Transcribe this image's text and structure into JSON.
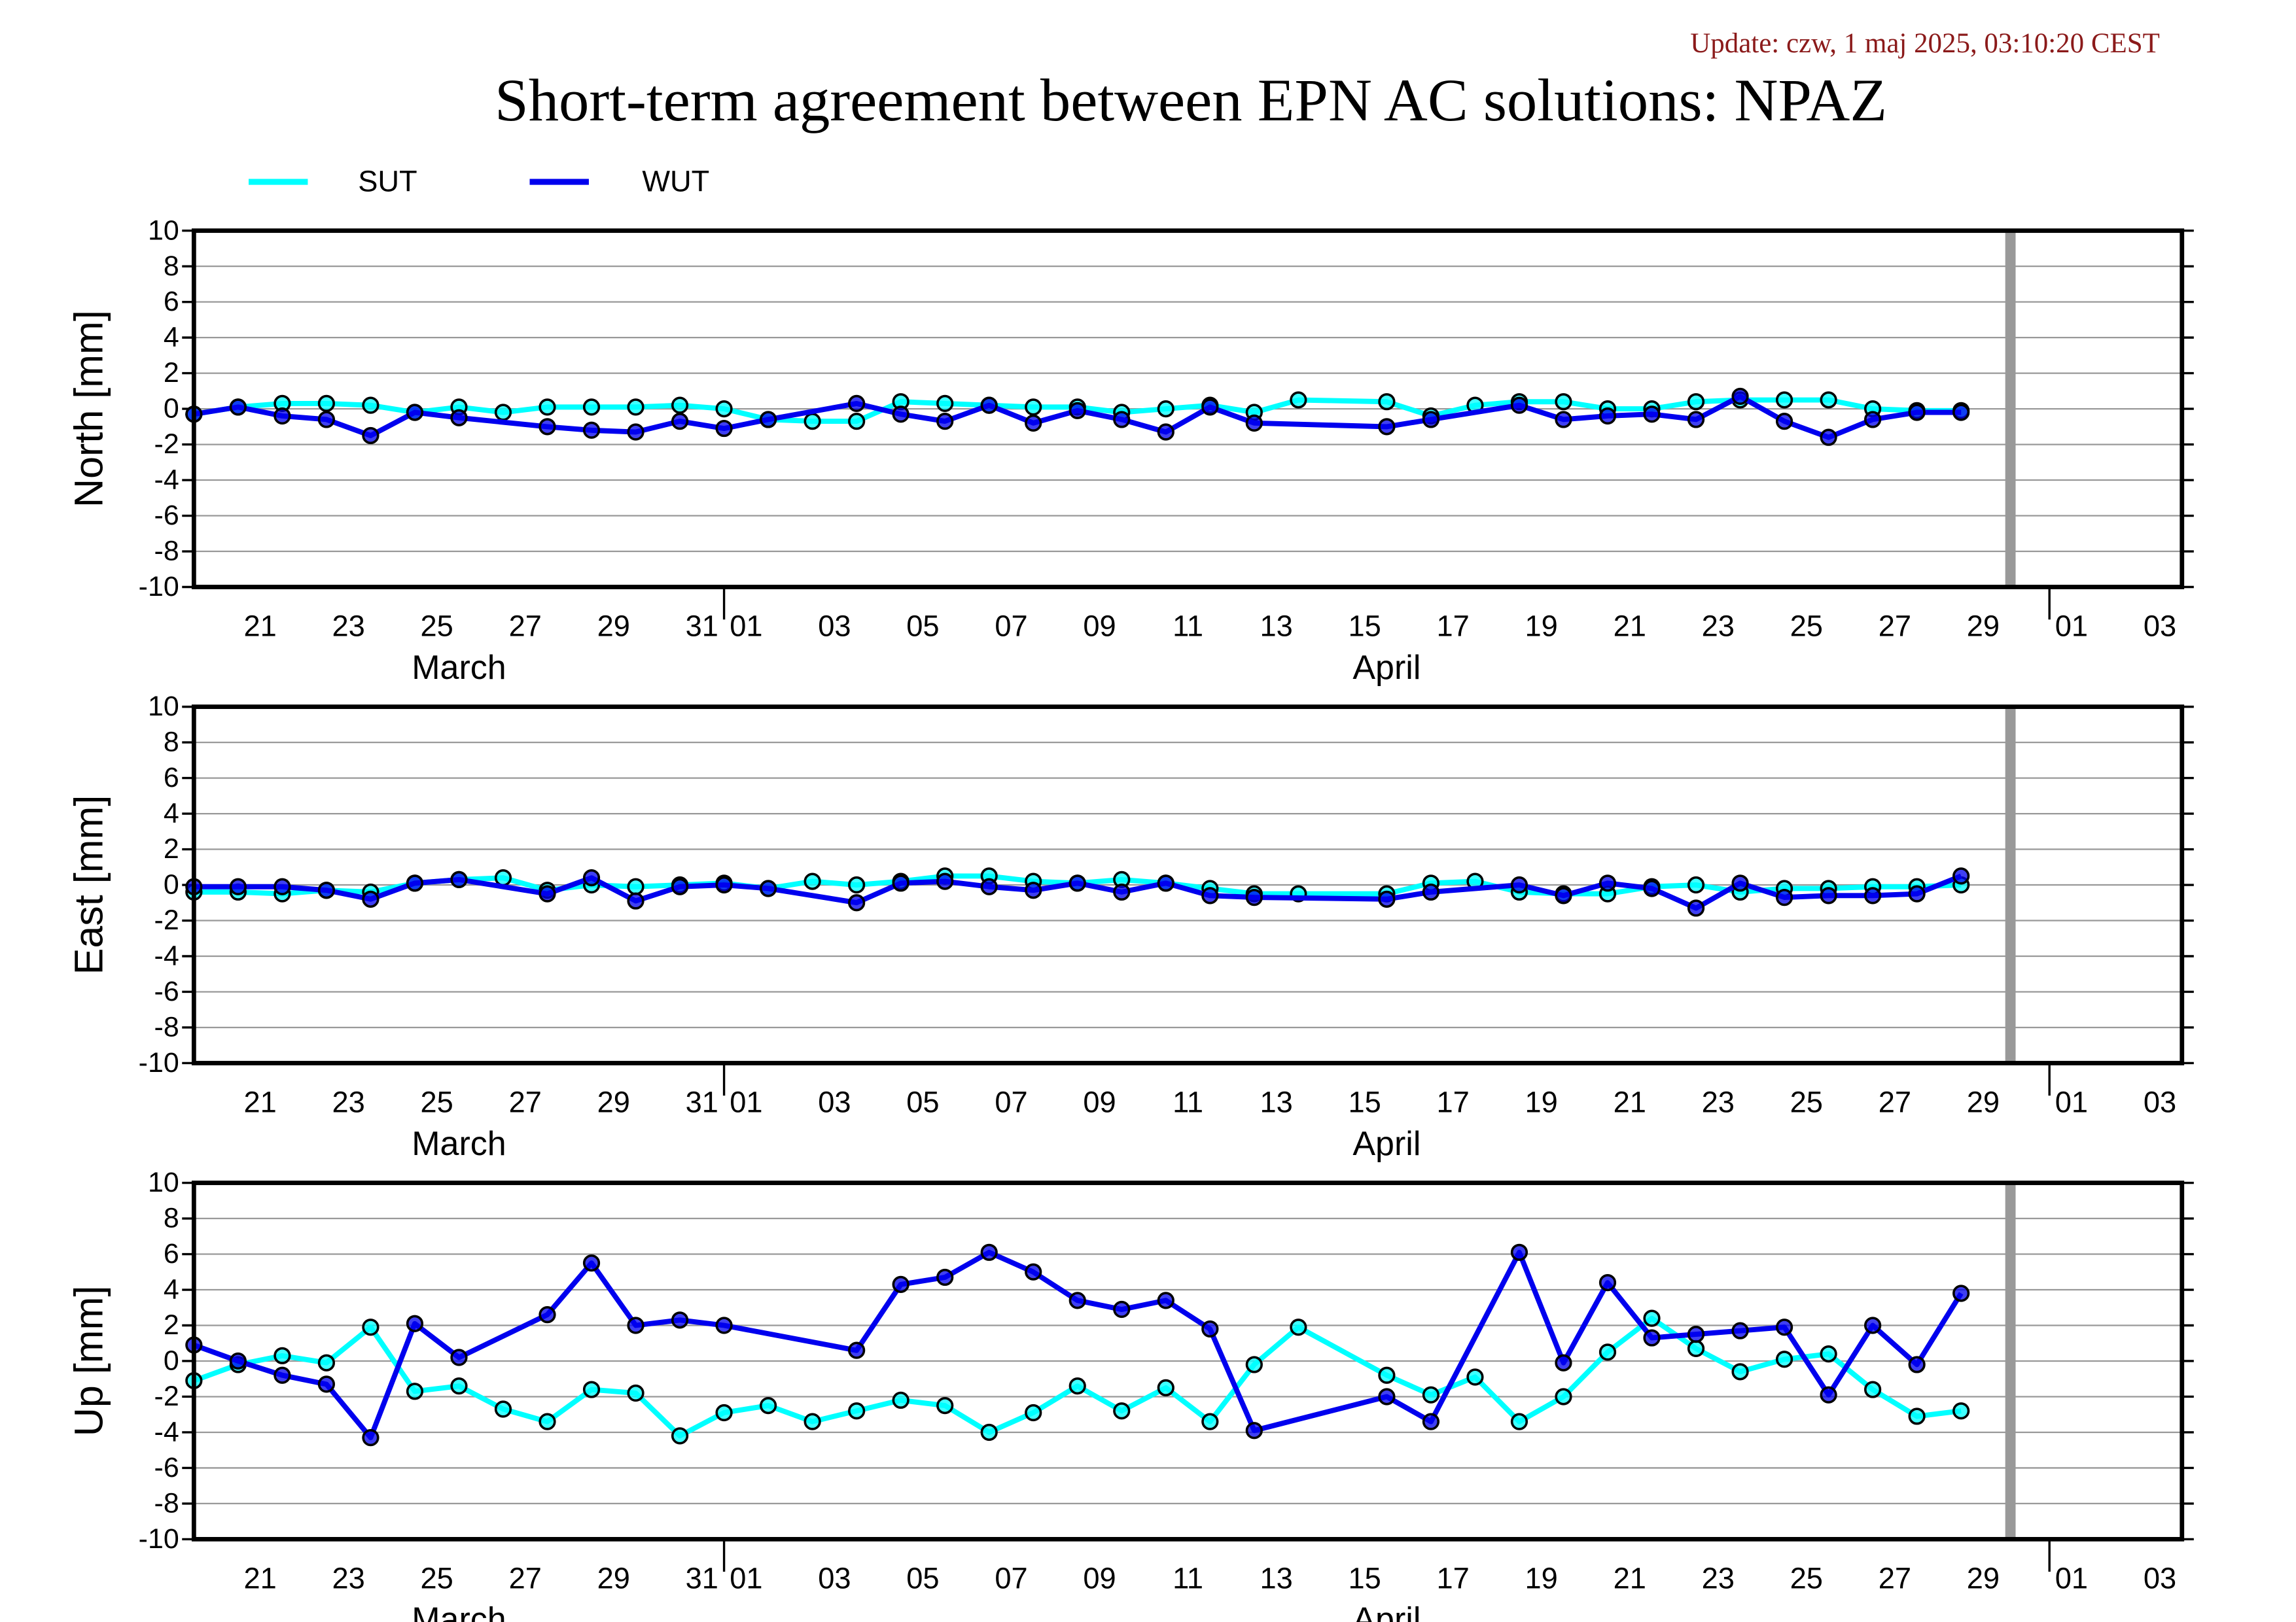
{
  "title": "Short-term agreement between EPN AC solutions: NPAZ",
  "update": "Update: czw, 1 maj 2025, 03:10:20 CEST",
  "chart_data": [
    {
      "type": "line",
      "ylabel": "North [mm]",
      "xlim": [
        "03-20",
        "05-04"
      ],
      "ylim": [
        -10,
        10
      ],
      "yticks": [
        -10,
        -8,
        -6,
        -4,
        -2,
        0,
        2,
        4,
        6,
        8,
        10
      ],
      "grid": true,
      "marker_x": "04-30",
      "xticks": [
        {
          "value": "03-21",
          "label": "21"
        },
        {
          "value": "03-23",
          "label": "23"
        },
        {
          "value": "03-25",
          "label": "25"
        },
        {
          "value": "03-27",
          "label": "27"
        },
        {
          "value": "03-29",
          "label": "29"
        },
        {
          "value": "03-31",
          "label": "31"
        },
        {
          "value": "04-01",
          "label": "01"
        },
        {
          "value": "04-03",
          "label": "03"
        },
        {
          "value": "04-05",
          "label": "05"
        },
        {
          "value": "04-07",
          "label": "07"
        },
        {
          "value": "04-09",
          "label": "09"
        },
        {
          "value": "04-11",
          "label": "11"
        },
        {
          "value": "04-13",
          "label": "13"
        },
        {
          "value": "04-15",
          "label": "15"
        },
        {
          "value": "04-17",
          "label": "17"
        },
        {
          "value": "04-19",
          "label": "19"
        },
        {
          "value": "04-21",
          "label": "21"
        },
        {
          "value": "04-23",
          "label": "23"
        },
        {
          "value": "04-25",
          "label": "25"
        },
        {
          "value": "04-27",
          "label": "27"
        },
        {
          "value": "04-29",
          "label": "29"
        },
        {
          "value": "05-01",
          "label": "01"
        },
        {
          "value": "05-03",
          "label": "03"
        }
      ],
      "months": [
        {
          "value": "03",
          "label": "March"
        },
        {
          "value": "04",
          "label": "April"
        }
      ],
      "series": [
        {
          "name": "SUT",
          "color": "#00ffff",
          "x": [
            "03-20",
            "03-21",
            "03-22",
            "03-23",
            "03-24",
            "03-25",
            "03-26",
            "03-27",
            "03-28",
            "03-29",
            "03-30",
            "03-31",
            "04-01",
            "04-02",
            "04-03",
            "04-04",
            "04-05",
            "04-06",
            "04-07",
            "04-08",
            "04-09",
            "04-10",
            "04-11",
            "04-12",
            "04-13",
            "04-14",
            "04-16",
            "04-17",
            "04-18",
            "04-19",
            "04-20",
            "04-21",
            "04-22",
            "04-23",
            "04-24",
            "04-25",
            "04-26",
            "04-27",
            "04-28",
            "04-29"
          ],
          "values": [
            -0.3,
            0.1,
            0.3,
            0.3,
            0.2,
            -0.2,
            0.1,
            -0.2,
            0.1,
            0.1,
            0.1,
            0.2,
            0.0,
            -0.6,
            -0.7,
            -0.7,
            0.4,
            0.3,
            0.2,
            0.1,
            0.1,
            -0.2,
            0.0,
            0.2,
            -0.2,
            0.5,
            0.4,
            -0.4,
            0.2,
            0.4,
            0.4,
            0.0,
            0.0,
            0.4,
            0.5,
            0.5,
            0.5,
            0.0,
            -0.1,
            -0.1
          ]
        },
        {
          "name": "WUT",
          "color": "#0000ee",
          "x": [
            "03-20",
            "03-21",
            "03-22",
            "03-23",
            "03-24",
            "03-25",
            "03-26",
            "03-28",
            "03-29",
            "03-30",
            "03-31",
            "04-01",
            "04-02",
            "04-04",
            "04-05",
            "04-06",
            "04-07",
            "04-08",
            "04-09",
            "04-10",
            "04-11",
            "04-12",
            "04-13",
            "04-16",
            "04-17",
            "04-19",
            "04-20",
            "04-21",
            "04-22",
            "04-23",
            "04-24",
            "04-25",
            "04-26",
            "04-27",
            "04-28",
            "04-29"
          ],
          "values": [
            -0.3,
            0.1,
            -0.4,
            -0.6,
            -1.5,
            -0.2,
            -0.5,
            -1.0,
            -1.2,
            -1.3,
            -0.7,
            -1.1,
            -0.6,
            0.3,
            -0.3,
            -0.7,
            0.2,
            -0.8,
            -0.1,
            -0.6,
            -1.3,
            0.1,
            -0.8,
            -1.0,
            -0.6,
            0.2,
            -0.6,
            -0.4,
            -0.3,
            -0.6,
            0.7,
            -0.7,
            -1.6,
            -0.6,
            -0.2,
            -0.2
          ]
        }
      ]
    },
    {
      "type": "line",
      "ylabel": "East [mm]",
      "xlim": [
        "03-20",
        "05-04"
      ],
      "ylim": [
        -10,
        10
      ],
      "yticks": [
        -10,
        -8,
        -6,
        -4,
        -2,
        0,
        2,
        4,
        6,
        8,
        10
      ],
      "grid": true,
      "marker_x": "04-30",
      "xticks": [
        {
          "value": "03-21",
          "label": "21"
        },
        {
          "value": "03-23",
          "label": "23"
        },
        {
          "value": "03-25",
          "label": "25"
        },
        {
          "value": "03-27",
          "label": "27"
        },
        {
          "value": "03-29",
          "label": "29"
        },
        {
          "value": "03-31",
          "label": "31"
        },
        {
          "value": "04-01",
          "label": "01"
        },
        {
          "value": "04-03",
          "label": "03"
        },
        {
          "value": "04-05",
          "label": "05"
        },
        {
          "value": "04-07",
          "label": "07"
        },
        {
          "value": "04-09",
          "label": "09"
        },
        {
          "value": "04-11",
          "label": "11"
        },
        {
          "value": "04-13",
          "label": "13"
        },
        {
          "value": "04-15",
          "label": "15"
        },
        {
          "value": "04-17",
          "label": "17"
        },
        {
          "value": "04-19",
          "label": "19"
        },
        {
          "value": "04-21",
          "label": "21"
        },
        {
          "value": "04-23",
          "label": "23"
        },
        {
          "value": "04-25",
          "label": "25"
        },
        {
          "value": "04-27",
          "label": "27"
        },
        {
          "value": "04-29",
          "label": "29"
        },
        {
          "value": "05-01",
          "label": "01"
        },
        {
          "value": "05-03",
          "label": "03"
        }
      ],
      "months": [
        {
          "value": "03",
          "label": "March"
        },
        {
          "value": "04",
          "label": "April"
        }
      ],
      "series": [
        {
          "color": "#00ffff",
          "x": [
            "03-20",
            "03-21",
            "03-22",
            "03-23",
            "03-24",
            "03-25",
            "03-26",
            "03-27",
            "03-28",
            "03-29",
            "03-30",
            "03-31",
            "04-01",
            "04-02",
            "04-03",
            "04-04",
            "04-05",
            "04-06",
            "04-07",
            "04-08",
            "04-09",
            "04-10",
            "04-11",
            "04-12",
            "04-13",
            "04-14",
            "04-16",
            "04-17",
            "04-18",
            "04-19",
            "04-20",
            "04-21",
            "04-22",
            "04-23",
            "04-24",
            "04-25",
            "04-26",
            "04-27",
            "04-28",
            "04-29"
          ],
          "values": [
            -0.4,
            -0.4,
            -0.5,
            -0.3,
            -0.4,
            0.1,
            0.3,
            0.4,
            -0.3,
            0.0,
            -0.1,
            0.0,
            0.1,
            -0.2,
            0.2,
            0.0,
            0.2,
            0.5,
            0.5,
            0.2,
            0.1,
            0.3,
            0.1,
            -0.2,
            -0.5,
            -0.5,
            -0.5,
            0.1,
            0.2,
            -0.4,
            -0.5,
            -0.5,
            -0.1,
            0.0,
            -0.4,
            -0.2,
            -0.2,
            -0.1,
            -0.1,
            0.0
          ]
        },
        {
          "color": "#0000ee",
          "x": [
            "03-20",
            "03-21",
            "03-22",
            "03-23",
            "03-24",
            "03-25",
            "03-26",
            "03-28",
            "03-29",
            "03-30",
            "03-31",
            "04-01",
            "04-02",
            "04-04",
            "04-05",
            "04-06",
            "04-07",
            "04-08",
            "04-09",
            "04-10",
            "04-11",
            "04-12",
            "04-13",
            "04-16",
            "04-17",
            "04-19",
            "04-20",
            "04-21",
            "04-22",
            "04-23",
            "04-24",
            "04-25",
            "04-26",
            "04-27",
            "04-28",
            "04-29"
          ],
          "values": [
            -0.1,
            -0.1,
            -0.1,
            -0.3,
            -0.8,
            0.1,
            0.3,
            -0.5,
            0.4,
            -0.9,
            -0.1,
            0.0,
            -0.2,
            -1.0,
            0.1,
            0.2,
            -0.1,
            -0.3,
            0.1,
            -0.4,
            0.1,
            -0.6,
            -0.7,
            -0.8,
            -0.4,
            0.0,
            -0.6,
            0.1,
            -0.2,
            -1.3,
            0.1,
            -0.7,
            -0.6,
            -0.6,
            -0.5,
            0.5
          ]
        }
      ]
    },
    {
      "type": "line",
      "ylabel": "Up [mm]",
      "xlim": [
        "03-20",
        "05-04"
      ],
      "ylim": [
        -10,
        10
      ],
      "yticks": [
        -10,
        -8,
        -6,
        -4,
        -2,
        0,
        2,
        4,
        6,
        8,
        10
      ],
      "grid": true,
      "marker_x": "04-30",
      "xticks": [
        {
          "value": "03-21",
          "label": "21"
        },
        {
          "value": "03-23",
          "label": "23"
        },
        {
          "value": "03-25",
          "label": "25"
        },
        {
          "value": "03-27",
          "label": "27"
        },
        {
          "value": "03-29",
          "label": "29"
        },
        {
          "value": "03-31",
          "label": "31"
        },
        {
          "value": "04-01",
          "label": "01"
        },
        {
          "value": "04-03",
          "label": "03"
        },
        {
          "value": "04-05",
          "label": "05"
        },
        {
          "value": "04-07",
          "label": "07"
        },
        {
          "value": "04-09",
          "label": "09"
        },
        {
          "value": "04-11",
          "label": "11"
        },
        {
          "value": "04-13",
          "label": "13"
        },
        {
          "value": "04-15",
          "label": "15"
        },
        {
          "value": "04-17",
          "label": "17"
        },
        {
          "value": "04-19",
          "label": "19"
        },
        {
          "value": "04-21",
          "label": "21"
        },
        {
          "value": "04-23",
          "label": "23"
        },
        {
          "value": "04-25",
          "label": "25"
        },
        {
          "value": "04-27",
          "label": "27"
        },
        {
          "value": "04-29",
          "label": "29"
        },
        {
          "value": "05-01",
          "label": "01"
        },
        {
          "value": "05-03",
          "label": "03"
        }
      ],
      "months": [
        {
          "value": "03",
          "label": "March"
        },
        {
          "value": "04",
          "label": "April"
        }
      ],
      "series": [
        {
          "color": "#00ffff",
          "x": [
            "03-20",
            "03-21",
            "03-22",
            "03-23",
            "03-24",
            "03-25",
            "03-26",
            "03-27",
            "03-28",
            "03-29",
            "03-30",
            "03-31",
            "04-01",
            "04-02",
            "04-03",
            "04-04",
            "04-05",
            "04-06",
            "04-07",
            "04-08",
            "04-09",
            "04-10",
            "04-11",
            "04-12",
            "04-13",
            "04-14",
            "04-16",
            "04-17",
            "04-18",
            "04-19",
            "04-20",
            "04-21",
            "04-22",
            "04-23",
            "04-24",
            "04-25",
            "04-26",
            "04-27",
            "04-28",
            "04-29"
          ],
          "values": [
            -1.1,
            -0.2,
            0.3,
            -0.1,
            1.9,
            -1.7,
            -1.4,
            -2.7,
            -3.4,
            -1.6,
            -1.8,
            -4.2,
            -2.9,
            -2.5,
            -3.4,
            -2.8,
            -2.2,
            -2.5,
            -4.0,
            -2.9,
            -1.4,
            -2.8,
            -1.5,
            -3.4,
            -0.2,
            1.9,
            -0.8,
            -1.9,
            -0.9,
            -3.4,
            -2.0,
            0.5,
            2.4,
            0.7,
            -0.6,
            0.1,
            0.4,
            -1.6,
            -3.1,
            -2.8
          ]
        },
        {
          "color": "#0000ee",
          "x": [
            "03-20",
            "03-21",
            "03-22",
            "03-23",
            "03-24",
            "03-25",
            "03-26",
            "03-28",
            "03-29",
            "03-30",
            "03-31",
            "04-01",
            "04-04",
            "04-05",
            "04-06",
            "04-07",
            "04-08",
            "04-09",
            "04-10",
            "04-11",
            "04-12",
            "04-13",
            "04-16",
            "04-17",
            "04-19",
            "04-20",
            "04-21",
            "04-22",
            "04-23",
            "04-24",
            "04-25",
            "04-26",
            "04-27",
            "04-28",
            "04-29"
          ],
          "values": [
            0.9,
            0.0,
            -0.8,
            -1.3,
            -4.3,
            2.1,
            0.2,
            2.6,
            5.5,
            2.0,
            2.3,
            2.0,
            0.6,
            4.3,
            4.7,
            6.1,
            5.0,
            3.4,
            2.9,
            3.4,
            1.8,
            -3.9,
            -2.0,
            -3.4,
            6.1,
            -0.1,
            4.4,
            1.3,
            1.5,
            1.7,
            1.9,
            -1.9,
            2.0,
            -0.2,
            3.8
          ]
        }
      ]
    }
  ]
}
